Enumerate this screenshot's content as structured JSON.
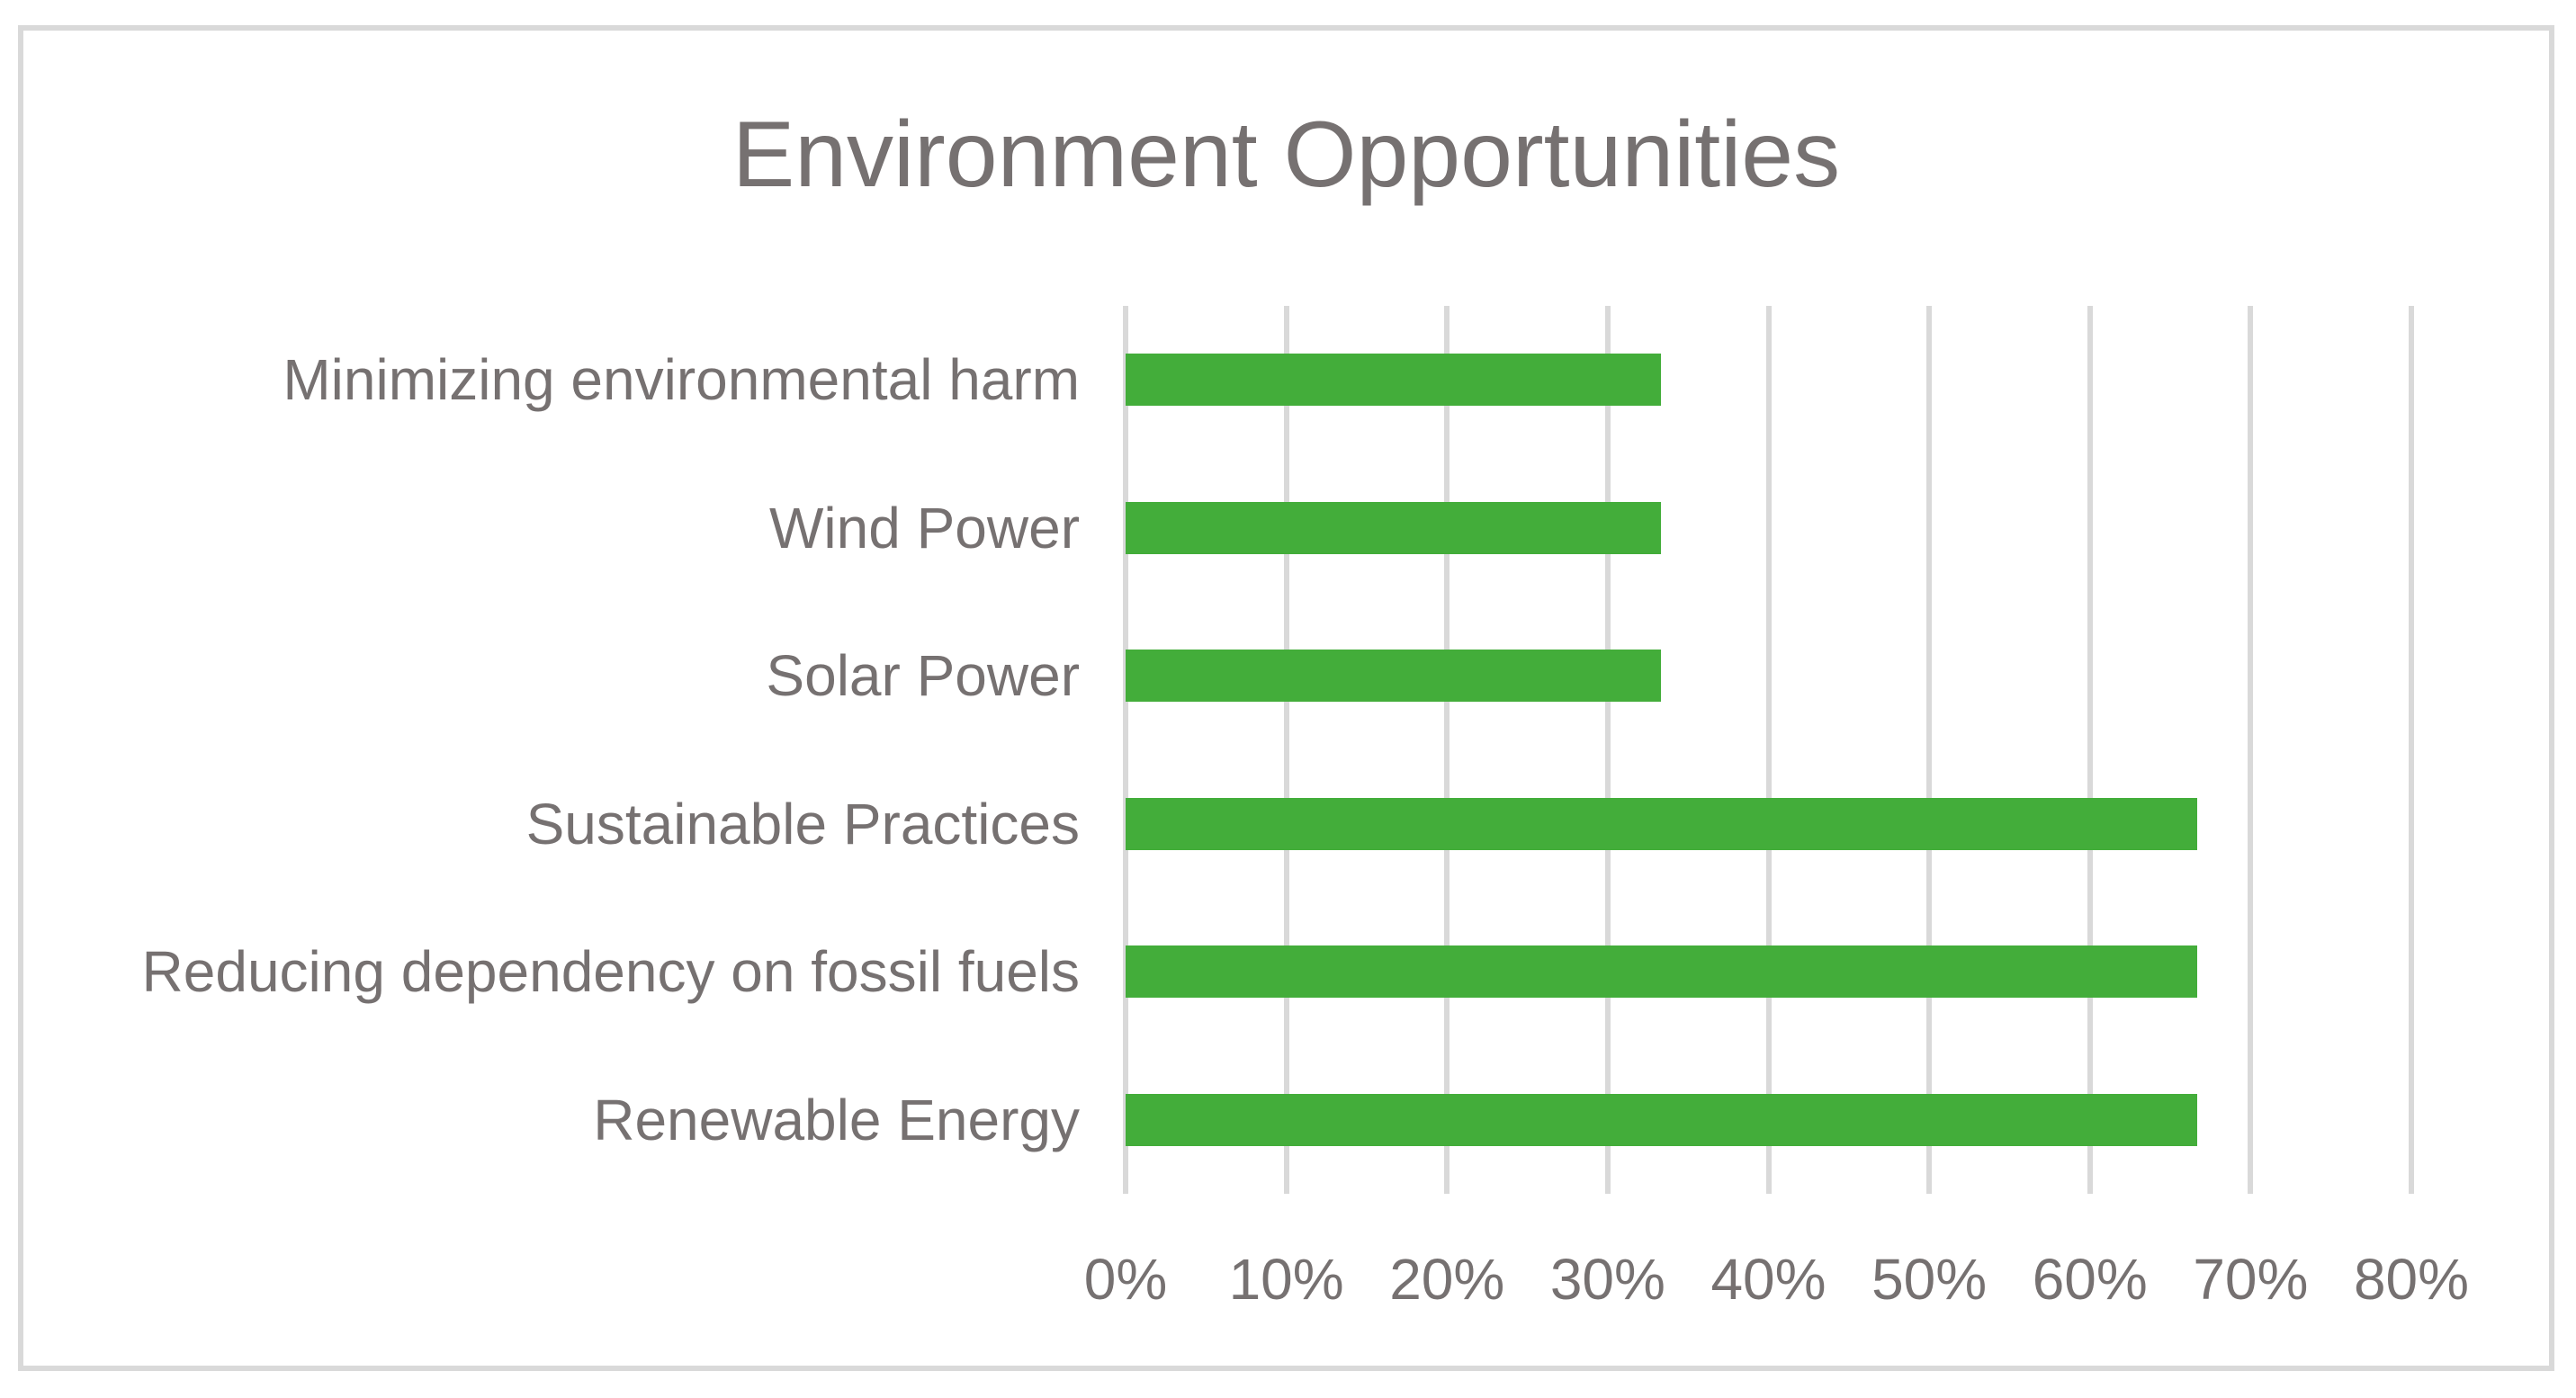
{
  "chart_data": {
    "type": "bar",
    "orientation": "horizontal",
    "title": "Environment Opportunities",
    "categories_order": "top-to-bottom",
    "categories": [
      "Minimizing environmental harm",
      "Wind Power",
      "Solar Power",
      "Sustainable Practices",
      "Reducing dependency on fossil fuels",
      "Renewable Energy"
    ],
    "values": [
      33.3,
      33.3,
      33.3,
      66.7,
      66.7,
      66.7
    ],
    "value_unit": "%",
    "xlabel": "",
    "ylabel": "",
    "xlim": [
      0,
      80
    ],
    "x_tick_step": 10,
    "x_ticks": [
      "0%",
      "10%",
      "20%",
      "30%",
      "40%",
      "50%",
      "60%",
      "70%",
      "80%"
    ],
    "grid": true,
    "legend": false,
    "colors": {
      "bar": "#43ad3a",
      "gridline": "#d9d9d9",
      "frame_border": "#d9d9d9",
      "text": "#767171",
      "background": "#ffffff"
    }
  }
}
